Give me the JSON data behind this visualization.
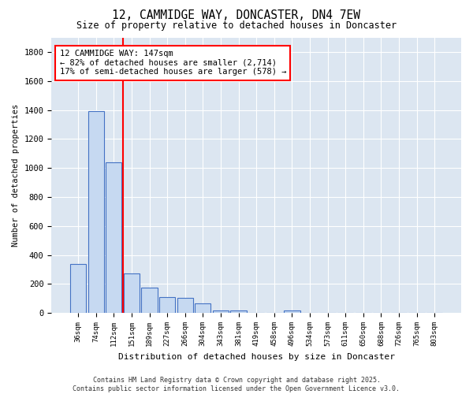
{
  "title": "12, CAMMIDGE WAY, DONCASTER, DN4 7EW",
  "subtitle": "Size of property relative to detached houses in Doncaster",
  "xlabel": "Distribution of detached houses by size in Doncaster",
  "ylabel": "Number of detached properties",
  "categories": [
    "36sqm",
    "74sqm",
    "112sqm",
    "151sqm",
    "189sqm",
    "227sqm",
    "266sqm",
    "304sqm",
    "343sqm",
    "381sqm",
    "419sqm",
    "458sqm",
    "496sqm",
    "534sqm",
    "573sqm",
    "611sqm",
    "650sqm",
    "688sqm",
    "726sqm",
    "765sqm",
    "803sqm"
  ],
  "values": [
    340,
    1390,
    1040,
    275,
    175,
    110,
    105,
    65,
    20,
    20,
    0,
    0,
    20,
    0,
    0,
    0,
    0,
    0,
    0,
    0,
    0
  ],
  "bar_color": "#c6d9f1",
  "bar_edge_color": "#4472c4",
  "background_color": "#dce6f1",
  "grid_color": "#ffffff",
  "annotation_text": "12 CAMMIDGE WAY: 147sqm\n← 82% of detached houses are smaller (2,714)\n17% of semi-detached houses are larger (578) →",
  "ylim": [
    0,
    1900
  ],
  "yticks": [
    0,
    200,
    400,
    600,
    800,
    1000,
    1200,
    1400,
    1600,
    1800
  ],
  "footer_line1": "Contains HM Land Registry data © Crown copyright and database right 2025.",
  "footer_line2": "Contains public sector information licensed under the Open Government Licence v3.0."
}
